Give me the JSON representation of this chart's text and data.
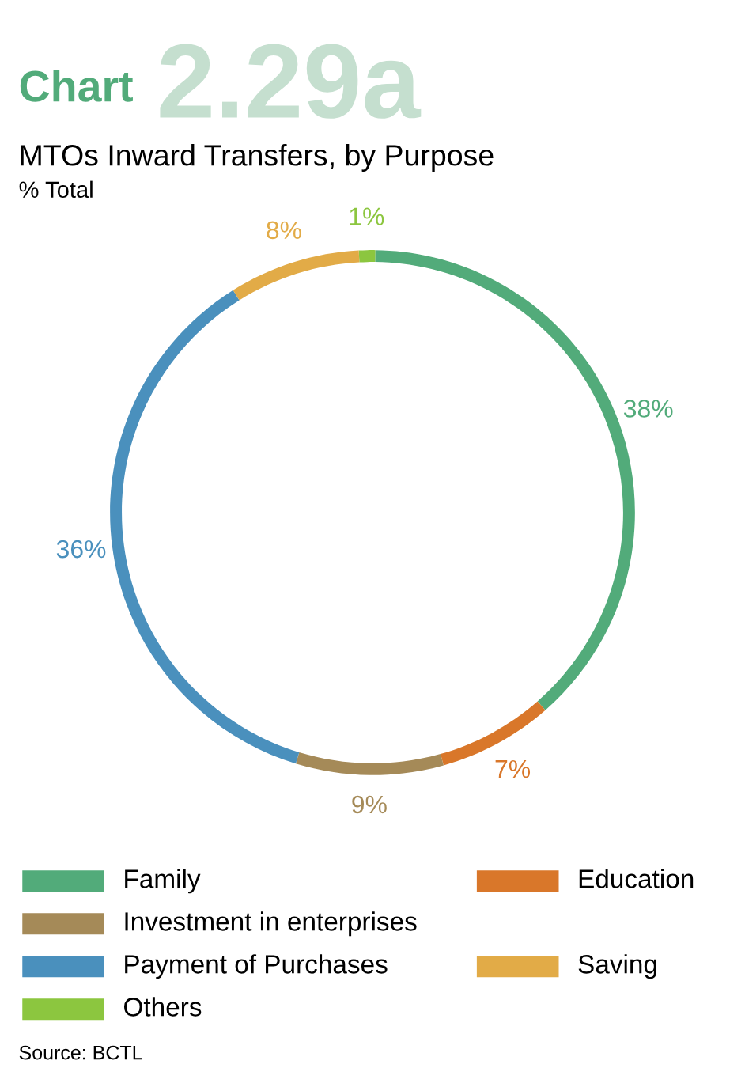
{
  "chart_data": {
    "type": "donut",
    "title": "MTOs Inward Transfers, by Purpose",
    "subtitle": "% Total",
    "annotations": [
      "Chart",
      "2.29a",
      "Source: BCTL"
    ],
    "categories": [
      "Others",
      "Family",
      "Education",
      "Investment in enterprises",
      "Payment of Purchases",
      "Saving"
    ],
    "values": [
      1,
      38,
      7,
      9,
      36,
      8
    ],
    "value_labels": [
      "1%",
      "38%",
      "7%",
      "9%",
      "36%",
      "8%"
    ],
    "colors": [
      "#8cc63f",
      "#52ab7a",
      "#d9772a",
      "#a58a58",
      "#4a90bd",
      "#e2ab47"
    ],
    "legend": "bottom"
  }
}
